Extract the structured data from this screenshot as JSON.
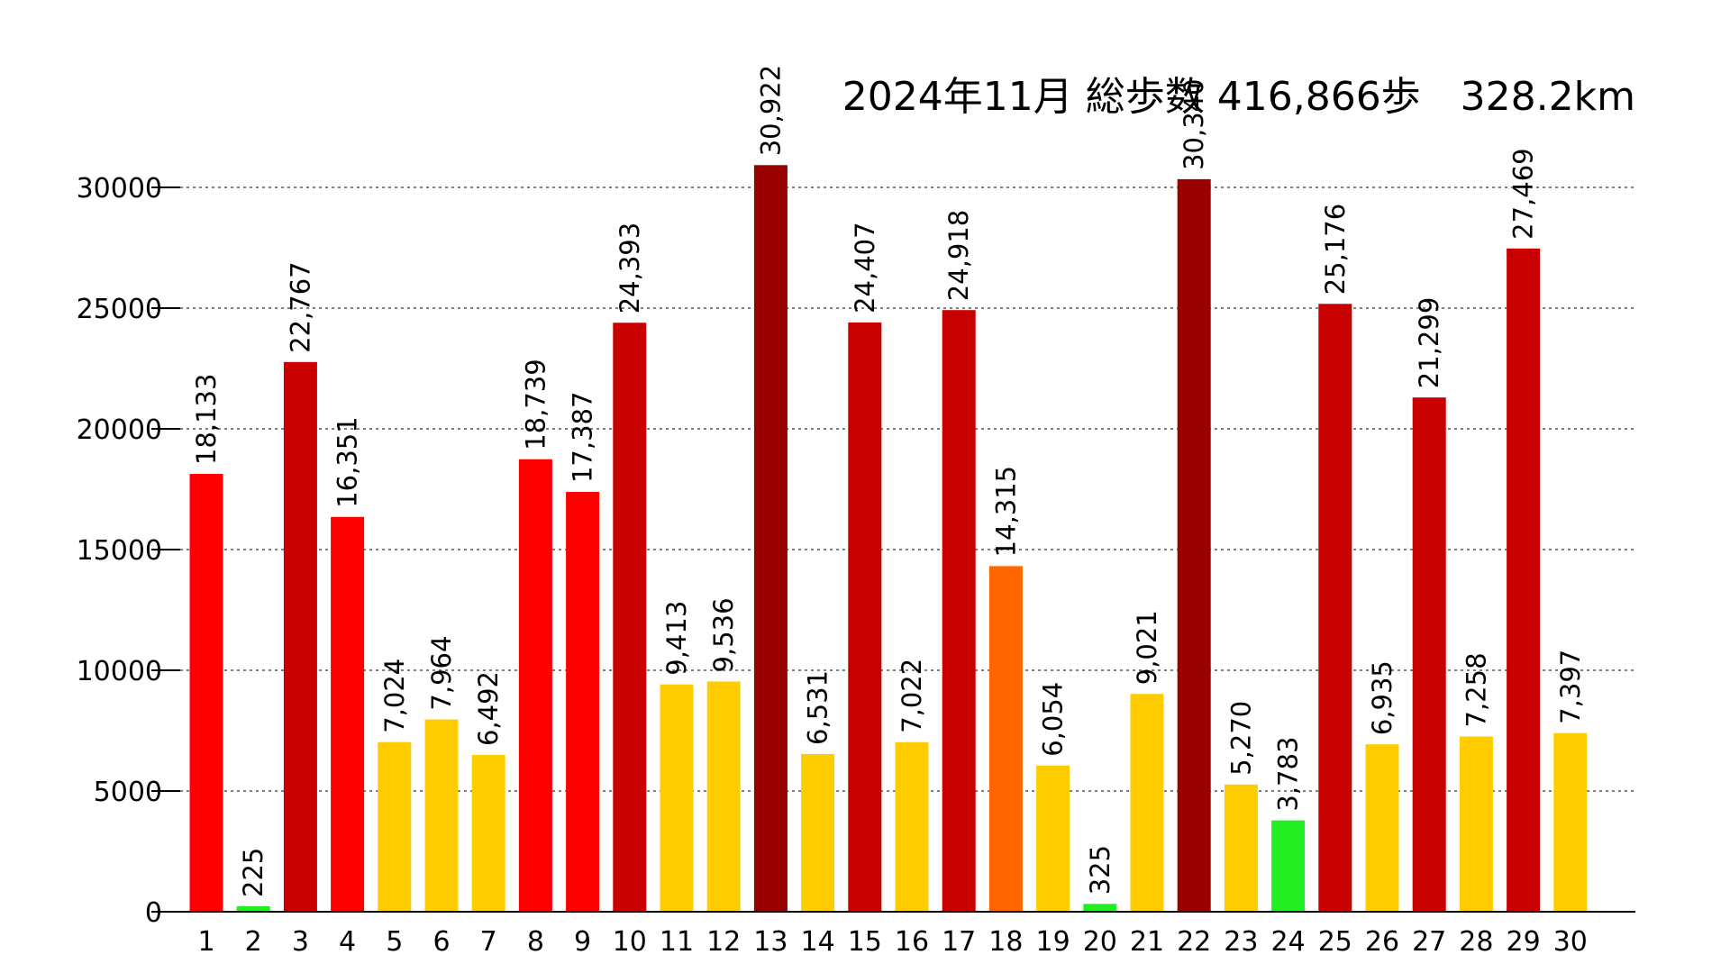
{
  "chart_data": {
    "type": "bar",
    "title": "2024年11月 総歩数 416,866歩　328.2km",
    "xlabel": "",
    "ylabel": "",
    "ylim": [
      0,
      31000
    ],
    "yticks": [
      0,
      5000,
      10000,
      15000,
      20000,
      25000,
      30000
    ],
    "ytick_labels": [
      "0",
      "5000",
      "10000",
      "15000",
      "20000",
      "25000",
      "30000"
    ],
    "grid": true,
    "categories": [
      "1",
      "2",
      "3",
      "4",
      "5",
      "6",
      "7",
      "8",
      "9",
      "10",
      "11",
      "12",
      "13",
      "14",
      "15",
      "16",
      "17",
      "18",
      "19",
      "20",
      "21",
      "22",
      "23",
      "24",
      "25",
      "26",
      "27",
      "28",
      "29",
      "30"
    ],
    "values": [
      18133,
      225,
      22767,
      16351,
      7024,
      7964,
      6492,
      18739,
      17387,
      24393,
      9413,
      9536,
      30922,
      6531,
      24407,
      7022,
      24918,
      14315,
      6054,
      325,
      9021,
      30340,
      5270,
      3783,
      25176,
      6935,
      21299,
      7258,
      27469,
      7397
    ],
    "value_labels": [
      "18,133",
      "225",
      "22,767",
      "16,351",
      "7,024",
      "7,964",
      "6,492",
      "18,739",
      "17,387",
      "24,393",
      "9,413",
      "9,536",
      "30,922",
      "6,531",
      "24,407",
      "7,022",
      "24,918",
      "14,315",
      "6,054",
      "325",
      "9,021",
      "30,340",
      "5,270",
      "3,783",
      "25,176",
      "6,935",
      "21,299",
      "7,258",
      "27,469",
      "7,397"
    ],
    "bar_colors": [
      "#ff0000",
      "#22ee22",
      "#c80000",
      "#ff0000",
      "#ffcc00",
      "#ffcc00",
      "#ffcc00",
      "#ff0000",
      "#ff0000",
      "#c80000",
      "#ffcc00",
      "#ffcc00",
      "#990000",
      "#ffcc00",
      "#c80000",
      "#ffcc00",
      "#c80000",
      "#ff6600",
      "#ffcc00",
      "#22ee22",
      "#ffcc00",
      "#990000",
      "#ffcc00",
      "#22ee22",
      "#c80000",
      "#ffcc00",
      "#c80000",
      "#ffcc00",
      "#c80000",
      "#ffcc00"
    ]
  }
}
